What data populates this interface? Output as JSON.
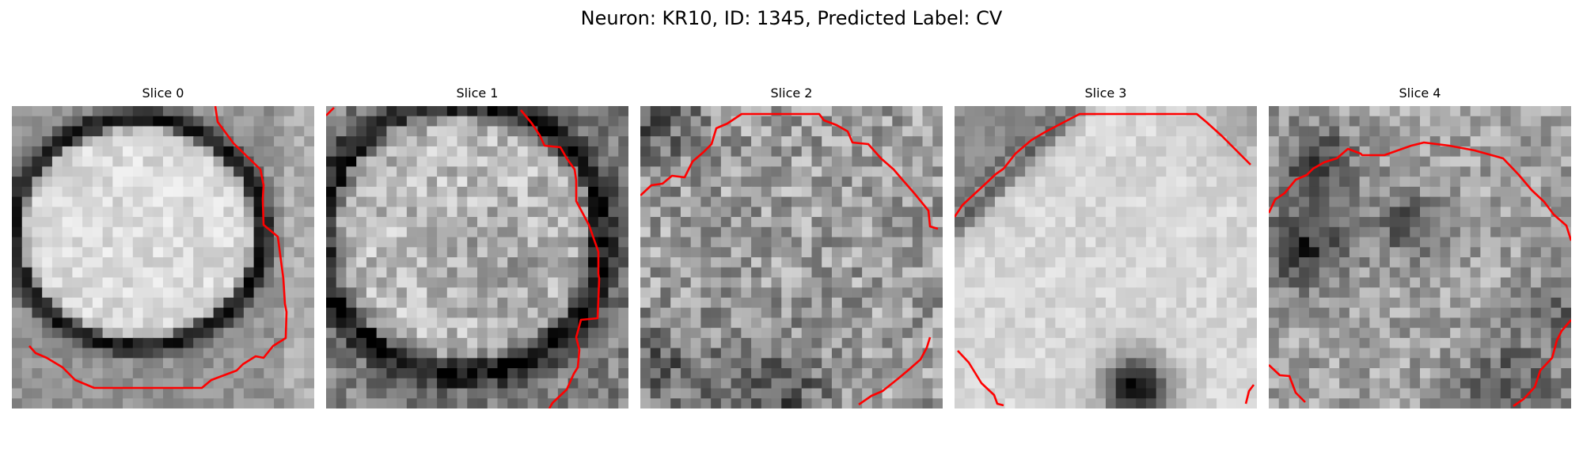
{
  "figure": {
    "title": "Neuron: KR10, ID: 1345, Predicted Label: CV"
  },
  "panels": [
    {
      "title": "Slice 0"
    },
    {
      "title": "Slice 1"
    },
    {
      "title": "Slice 2"
    },
    {
      "title": "Slice 3"
    },
    {
      "title": "Slice 4"
    }
  ],
  "colors": {
    "contour": "#ff0000",
    "background": "#ffffff",
    "colormap": "grayscale"
  }
}
